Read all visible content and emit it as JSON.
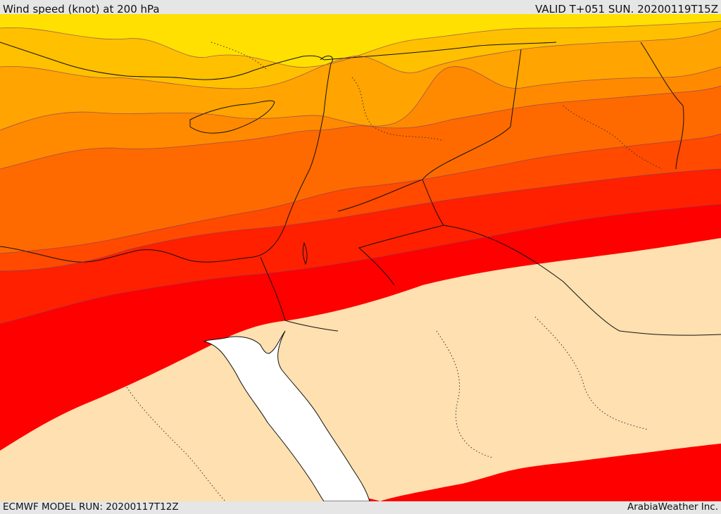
{
  "header": {
    "title": "Wind speed (knot) at 200 hPa",
    "valid": "VALID T+051 SUN. 20200119T15Z"
  },
  "footer": {
    "model_run": "ECMWF MODEL RUN: 20200117T12Z",
    "credit": "ArabiaWeather Inc."
  },
  "map": {
    "variable": "wind speed",
    "level": "200 hPa",
    "units": "knot",
    "band_colors": [
      "#ffe000",
      "#ffc000",
      "#ffa400",
      "#ff8a00",
      "#ff6a00",
      "#ff4a00",
      "#ff2000",
      "#ff0000",
      "#ffe0b0"
    ],
    "sea_color": "#ffffff"
  }
}
